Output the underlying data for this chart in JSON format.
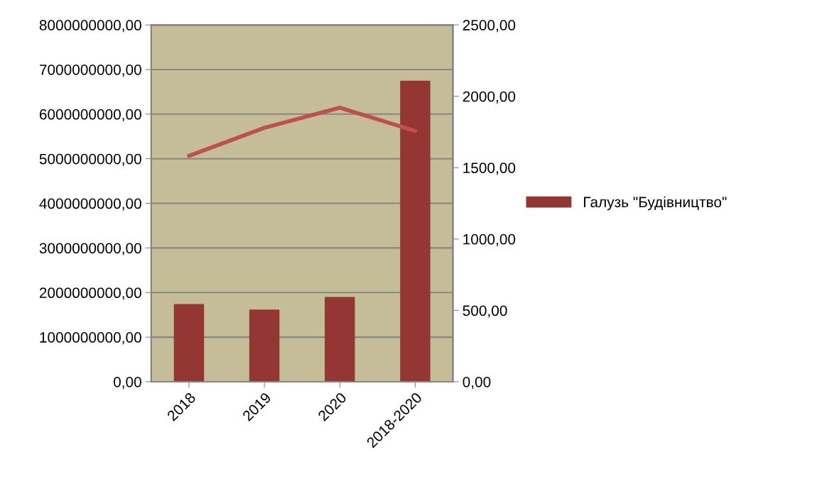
{
  "chart_data": {
    "type": "bar",
    "categories": [
      "2018",
      "2019",
      "2020",
      "2018-2020"
    ],
    "series": [
      {
        "name": "Галузь \"Будівництво\"",
        "color": "#943634",
        "values": [
          1740000000,
          1620000000,
          1900000000,
          6750000000
        ]
      },
      {
        "type": "line",
        "axis": "y2",
        "color": "#c0504d",
        "values": [
          1583,
          1779,
          1920,
          1757
        ]
      }
    ],
    "ylim": [
      0,
      8000000000
    ],
    "yticks": [
      {
        "value": 0,
        "label": "0,00"
      },
      {
        "value": 1000000000,
        "label": "1000000000,00"
      },
      {
        "value": 2000000000,
        "label": "2000000000,00"
      },
      {
        "value": 3000000000,
        "label": "3000000000,00"
      },
      {
        "value": 4000000000,
        "label": "4000000000,00"
      },
      {
        "value": 5000000000,
        "label": "5000000000,00"
      },
      {
        "value": 6000000000,
        "label": "6000000000,00"
      },
      {
        "value": 7000000000,
        "label": "7000000000,00"
      },
      {
        "value": 8000000000,
        "label": "8000000000,00"
      }
    ],
    "y2lim": [
      0,
      2500
    ],
    "y2ticks": [
      {
        "value": 0,
        "label": "0,00"
      },
      {
        "value": 500,
        "label": "500,00"
      },
      {
        "value": 1000,
        "label": "1000,00"
      },
      {
        "value": 1500,
        "label": "1500,00"
      },
      {
        "value": 2000,
        "label": "2000,00"
      },
      {
        "value": 2500,
        "label": "2500,00"
      }
    ],
    "grid": "y",
    "legend": "right"
  }
}
